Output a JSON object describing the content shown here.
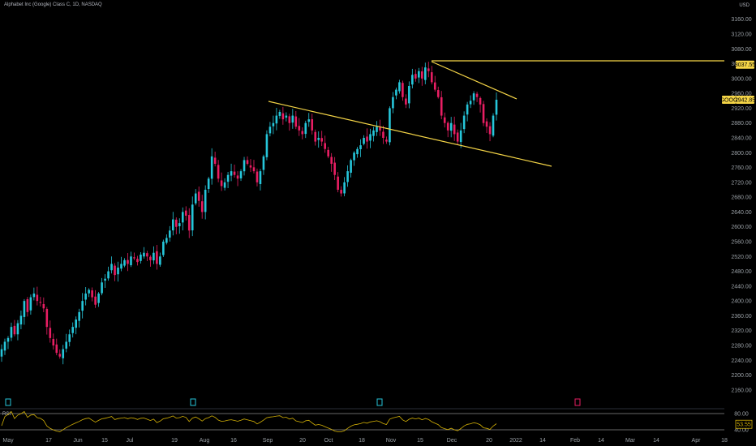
{
  "header": {
    "title": "Alphabet Inc (Google) Class C, 1D, NASDAQ",
    "currency": "USD"
  },
  "price_axis": {
    "ticks": [
      "3160.00",
      "3120.00",
      "3080.00",
      "3040.00",
      "3000.00",
      "2960.00",
      "2920.00",
      "2880.00",
      "2840.00",
      "2800.00",
      "2760.00",
      "2720.00",
      "2680.00",
      "2640.00",
      "2600.00",
      "2560.00",
      "2520.00",
      "2480.00",
      "2440.00",
      "2400.00",
      "2360.00",
      "2320.00",
      "2280.00",
      "2240.00",
      "2200.00",
      "2160.00"
    ]
  },
  "markers": {
    "high_label": "3037.55",
    "last_label": "2942.85",
    "ticker": "GOOG"
  },
  "rsi": {
    "label": "RSI",
    "ticks": [
      "80.00",
      "40.00"
    ],
    "last_value": "53.55"
  },
  "colors": {
    "up": "#26c6da",
    "down": "#e91e63",
    "trend": "#f5d547",
    "rsi_line": "#d4b106",
    "price_badge": "#f5d547"
  },
  "chart_data": {
    "type": "candlestick",
    "title": "Alphabet Inc (Google) Class C, 1D, NASDAQ",
    "ylim": [
      2140,
      3190
    ],
    "x_labels": [
      "May",
      "17",
      "Jun",
      "15",
      "Jul",
      "19",
      "Aug",
      "16",
      "Sep",
      "20",
      "Oct",
      "18",
      "Nov",
      "15",
      "Dec",
      "20",
      "2022",
      "14",
      "Feb",
      "14",
      "Mar",
      "14",
      "Apr",
      "18"
    ],
    "closes": [
      2270,
      2290,
      2300,
      2330,
      2310,
      2340,
      2360,
      2400,
      2370,
      2410,
      2420,
      2400,
      2395,
      2380,
      2330,
      2300,
      2280,
      2260,
      2250,
      2270,
      2290,
      2310,
      2330,
      2350,
      2370,
      2400,
      2420,
      2430,
      2410,
      2390,
      2420,
      2450,
      2460,
      2480,
      2500,
      2470,
      2490,
      2500,
      2510,
      2500,
      2520,
      2515,
      2505,
      2525,
      2530,
      2520,
      2510,
      2530,
      2500,
      2520,
      2560,
      2570,
      2590,
      2620,
      2600,
      2610,
      2640,
      2630,
      2590,
      2660,
      2690,
      2670,
      2640,
      2700,
      2730,
      2790,
      2770,
      2730,
      2710,
      2720,
      2740,
      2750,
      2740,
      2730,
      2750,
      2780,
      2770,
      2760,
      2750,
      2720,
      2750,
      2790,
      2850,
      2870,
      2880,
      2900,
      2910,
      2890,
      2900,
      2880,
      2900,
      2870,
      2860,
      2850,
      2880,
      2890,
      2860,
      2830,
      2840,
      2830,
      2810,
      2790,
      2770,
      2740,
      2700,
      2690,
      2720,
      2750,
      2780,
      2800,
      2810,
      2820,
      2840,
      2830,
      2850,
      2860,
      2870,
      2860,
      2840,
      2830,
      2920,
      2950,
      2970,
      2990,
      2950,
      2930,
      2980,
      3010,
      3000,
      3020,
      3000,
      3030,
      3020,
      2990,
      2970,
      2950,
      2900,
      2880,
      2860,
      2880,
      2850,
      2830,
      2860,
      2900,
      2930,
      2940,
      2960,
      2950,
      2930,
      2880,
      2870,
      2850,
      2900,
      2942.85
    ],
    "high_value": 3037.55,
    "last_value": 2942.85,
    "ticker": "GOOG",
    "trendlines": [
      {
        "name": "upper-resistance",
        "from": [
          "Sep",
          2935
        ],
        "to": [
          "Dec",
          2940
        ]
      },
      {
        "name": "lower-support",
        "from": [
          "Sep",
          2930
        ],
        "to": [
          "2022",
          2760
        ]
      },
      {
        "name": "horizontal-high",
        "value": 3037.55
      }
    ],
    "rsi": {
      "range": [
        40,
        80
      ],
      "last": 53.55
    }
  }
}
